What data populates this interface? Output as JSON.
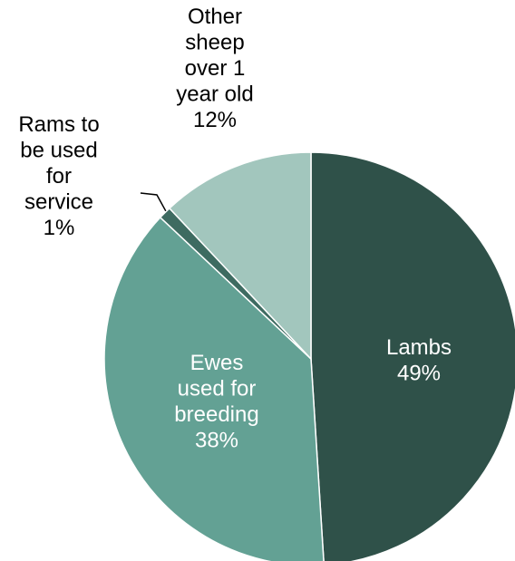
{
  "chart_data": {
    "type": "pie",
    "title": "",
    "start_angle_deg": 0,
    "direction": "clockwise",
    "slices": [
      {
        "label_lines": [
          "Lambs",
          "49%"
        ],
        "value": 49,
        "color": "#2f5149",
        "label_color": "#ffffff"
      },
      {
        "label_lines": [
          "Ewes",
          "used for",
          "breeding",
          "38%"
        ],
        "value": 38,
        "color": "#63a194",
        "label_color": "#ffffff"
      },
      {
        "label_lines": [
          "Rams to",
          "be used",
          "for",
          "service",
          "1%"
        ],
        "value": 1,
        "color": "#3e6b61",
        "label_color": "#000000"
      },
      {
        "label_lines": [
          "Other",
          "sheep",
          "over 1",
          "year old",
          "12%"
        ],
        "value": 12,
        "color": "#a2c6bd",
        "label_color": "#000000"
      }
    ],
    "legend": "none"
  }
}
